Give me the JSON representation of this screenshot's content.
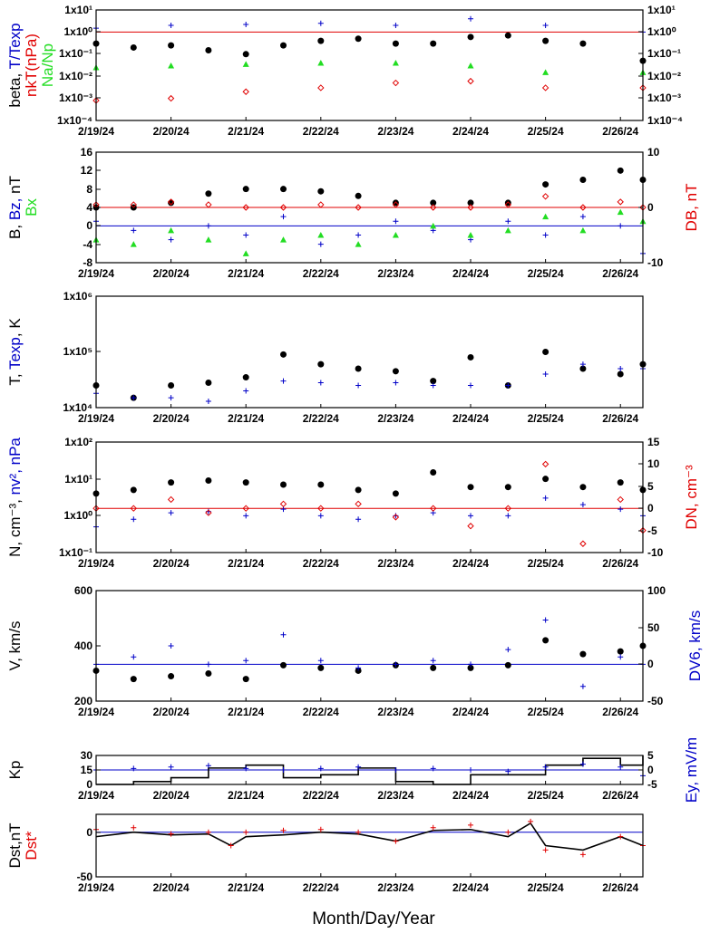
{
  "colors": {
    "black": "#000000",
    "red": "#e00000",
    "blue": "#0000c8",
    "green": "#22dd22"
  },
  "x_ticks": [
    "2/19/24",
    "2/20/24",
    "2/21/24",
    "2/22/24",
    "2/23/24",
    "2/24/24",
    "2/25/24",
    "2/26/24"
  ],
  "x_axis_title": "Month/Day/Year",
  "chart_data": [
    {
      "type": "scatter",
      "ylabel_parts": [
        {
          "text": "beta, ",
          "color": "black"
        },
        {
          "text": "T/Texp",
          "color": "blue"
        },
        {
          "text": "nkT(nPa)",
          "color": "red"
        },
        {
          "text": "Na/Np",
          "color": "green"
        }
      ],
      "y_scale": "log",
      "ylim": [
        "1x10-4",
        "1x10¹"
      ],
      "y_ticks_left": [
        "1x10¹",
        "1x10⁰",
        "1x10⁻¹",
        "1x10⁻²",
        "1x10⁻³",
        "1x10⁻⁴"
      ],
      "y_ticks_right": [
        "1x10¹",
        "1x10⁰",
        "1x10⁻¹",
        "1x10⁻²",
        "1x10⁻³",
        "1x10⁻⁴"
      ],
      "reference_lines": [
        {
          "value": "1",
          "color": "red"
        }
      ],
      "series": [
        {
          "color": "black",
          "marker": "dot",
          "x_days": [
            0,
            0.5,
            1,
            1.5,
            2,
            2.5,
            3,
            3.5,
            4,
            4.5,
            5,
            5.5,
            6,
            6.5,
            7.3
          ],
          "values": [
            0.3,
            0.2,
            0.25,
            0.15,
            0.1,
            0.25,
            0.4,
            0.5,
            0.3,
            0.3,
            0.6,
            0.7,
            0.4,
            0.3,
            0.05
          ]
        },
        {
          "color": "blue",
          "marker": "plus",
          "x_days": [
            0,
            1,
            2,
            3,
            4,
            5,
            6,
            7.3
          ],
          "values": [
            1.5,
            2,
            2.2,
            2.5,
            2,
            4,
            2,
            1
          ]
        },
        {
          "color": "green",
          "marker": "triangle",
          "x_days": [
            0,
            1,
            2,
            3,
            4,
            5,
            6,
            7.3
          ],
          "values": [
            0.025,
            0.03,
            0.035,
            0.04,
            0.04,
            0.03,
            0.015,
            0.015
          ]
        },
        {
          "color": "red",
          "marker": "diamond",
          "x_days": [
            0,
            1,
            2,
            3,
            4,
            5,
            6,
            7.3
          ],
          "values": [
            0.0008,
            0.001,
            0.002,
            0.003,
            0.005,
            0.006,
            0.003,
            0.003
          ]
        }
      ]
    },
    {
      "type": "scatter",
      "ylabel_parts": [
        {
          "text": "B, ",
          "color": "black"
        },
        {
          "text": "Bz, ",
          "color": "blue"
        },
        {
          "text": "nT",
          "color": "black"
        },
        {
          "text": "Bx",
          "color": "green"
        }
      ],
      "ylim": [
        -8,
        16
      ],
      "y_ticks_left": [
        "16",
        "12",
        "8",
        "4",
        "0",
        "-4",
        "-8"
      ],
      "right_label": "DB, nT",
      "right_ylim": [
        -10,
        10
      ],
      "y_ticks_right": [
        "10",
        "0",
        "-10"
      ],
      "reference_lines": [
        {
          "value": 0,
          "color": "blue"
        },
        {
          "value": 4,
          "color": "red"
        }
      ],
      "series": [
        {
          "color": "black",
          "marker": "dot",
          "x_days": [
            0,
            0.5,
            1,
            1.5,
            2,
            2.5,
            3,
            3.5,
            4,
            4.5,
            5,
            5.5,
            6,
            6.5,
            7,
            7.3
          ],
          "values": [
            4,
            4,
            5,
            7,
            8,
            8,
            7.5,
            6.5,
            5,
            5,
            5,
            5,
            9,
            10,
            12,
            10
          ]
        },
        {
          "color": "blue",
          "marker": "plus",
          "x_days": [
            0,
            0.5,
            1,
            1.5,
            2,
            2.5,
            3,
            3.5,
            4,
            4.5,
            5,
            5.5,
            6,
            6.5,
            7,
            7.3
          ],
          "values": [
            1,
            -1,
            -3,
            0,
            -2,
            2,
            -4,
            -2,
            1,
            -1,
            -3,
            1,
            -2,
            2,
            0,
            -6
          ]
        },
        {
          "color": "green",
          "marker": "triangle",
          "x_days": [
            0,
            0.5,
            1,
            1.5,
            2,
            2.5,
            3,
            3.5,
            4,
            4.5,
            5,
            5.5,
            6,
            6.5,
            7,
            7.3
          ],
          "values": [
            -3,
            -4,
            -1,
            -3,
            -6,
            -3,
            -2,
            -4,
            -2,
            0,
            -2,
            -1,
            2,
            -1,
            3,
            1
          ]
        },
        {
          "color": "red",
          "marker": "diamond",
          "x_days": [
            0,
            0.5,
            1,
            1.5,
            2,
            2.5,
            3,
            3.5,
            4,
            4.5,
            5,
            5.5,
            6,
            6.5,
            7,
            7.3
          ],
          "values": [
            0.5,
            0.5,
            1,
            0.5,
            0,
            0,
            0.5,
            0,
            0.5,
            0,
            0,
            0.5,
            2,
            0,
            1,
            0
          ]
        }
      ]
    },
    {
      "type": "scatter",
      "ylabel_parts": [
        {
          "text": "T, ",
          "color": "black"
        },
        {
          "text": "Texp",
          "color": "blue"
        },
        {
          "text": ", K",
          "color": "black"
        }
      ],
      "y_scale": "log",
      "y_ticks_left": [
        "1x10⁶",
        "1x10⁵",
        "1x10⁴"
      ],
      "series": [
        {
          "color": "black",
          "marker": "dot",
          "x_days": [
            0,
            0.5,
            1,
            1.5,
            2,
            2.5,
            3,
            3.5,
            4,
            4.5,
            5,
            5.5,
            6,
            6.5,
            7,
            7.3
          ],
          "values": [
            25000,
            15000,
            25000,
            28000,
            35000,
            90000,
            60000,
            50000,
            45000,
            30000,
            80000,
            25000,
            100000,
            50000,
            40000,
            60000
          ]
        },
        {
          "color": "blue",
          "marker": "plus",
          "x_days": [
            0,
            0.5,
            1,
            1.5,
            2,
            2.5,
            3,
            3.5,
            4,
            4.5,
            5,
            5.5,
            6,
            6.5,
            7,
            7.3
          ],
          "values": [
            18000,
            15000,
            15000,
            13000,
            20000,
            30000,
            28000,
            25000,
            28000,
            25000,
            25000,
            25000,
            40000,
            60000,
            50000,
            50000
          ]
        }
      ]
    },
    {
      "type": "scatter",
      "ylabel_parts": [
        {
          "text": "N, cm⁻³, ",
          "color": "black"
        },
        {
          "text": "nv², nPa",
          "color": "blue"
        }
      ],
      "y_scale": "log",
      "y_ticks_left": [
        "1x10²",
        "1x10¹",
        "1x10⁰",
        "1x10⁻¹"
      ],
      "right_label": "DN, cm⁻³",
      "right_ylim": [
        -10,
        15
      ],
      "y_ticks_right": [
        "15",
        "10",
        "5",
        "0",
        "-5",
        "-10"
      ],
      "reference_lines": [
        {
          "value": "0 (right axis)",
          "color": "red"
        }
      ],
      "series": [
        {
          "color": "black",
          "marker": "dot",
          "x_days": [
            0,
            0.5,
            1,
            1.5,
            2,
            2.5,
            3,
            3.5,
            4,
            4.5,
            5,
            5.5,
            6,
            6.5,
            7,
            7.3
          ],
          "values": [
            4,
            5,
            8,
            9,
            8,
            7,
            7,
            5,
            4,
            15,
            6,
            6,
            10,
            6,
            8,
            5
          ]
        },
        {
          "color": "blue",
          "marker": "plus",
          "x_days": [
            0,
            0.5,
            1,
            1.5,
            2,
            2.5,
            3,
            3.5,
            4,
            4.5,
            5,
            5.5,
            6,
            6.5,
            7,
            7.3
          ],
          "values": [
            0.5,
            0.8,
            1.2,
            1.3,
            1,
            1.5,
            1,
            0.8,
            1,
            1.2,
            1,
            1,
            3,
            2,
            1.5,
            1
          ]
        },
        {
          "color": "red",
          "marker": "diamond",
          "x_days": [
            0,
            0.5,
            1,
            1.5,
            2,
            2.5,
            3,
            3.5,
            4,
            4.5,
            5,
            5.5,
            6,
            6.5,
            7,
            7.3
          ],
          "values": [
            0,
            0,
            2,
            -1,
            0,
            1,
            0,
            1,
            -2,
            0,
            -4,
            0,
            10,
            -8,
            2,
            -5
          ]
        }
      ]
    },
    {
      "type": "scatter",
      "ylabel_parts": [
        {
          "text": "V, km/s",
          "color": "black"
        }
      ],
      "ylim": [
        200,
        600
      ],
      "y_ticks_left": [
        "600",
        "400",
        "200"
      ],
      "right_label": "DV6, km/s",
      "right_ylim": [
        -50,
        100
      ],
      "y_ticks_right": [
        "100",
        "50",
        "0",
        "-50"
      ],
      "reference_lines": [
        {
          "value": "0 (right axis)",
          "color": "blue"
        }
      ],
      "series": [
        {
          "color": "black",
          "marker": "dot",
          "x_days": [
            0,
            0.5,
            1,
            1.5,
            2,
            2.5,
            3,
            3.5,
            4,
            4.5,
            5,
            5.5,
            6,
            6.5,
            7,
            7.3
          ],
          "values": [
            310,
            280,
            290,
            300,
            280,
            330,
            320,
            310,
            330,
            320,
            320,
            330,
            420,
            370,
            380,
            400
          ]
        },
        {
          "color": "blue",
          "marker": "plus",
          "x_days": [
            0,
            0.5,
            1,
            1.5,
            2,
            2.5,
            3,
            3.5,
            4,
            4.5,
            5,
            5.5,
            6,
            6.5,
            7,
            7.3
          ],
          "values": [
            0,
            10,
            25,
            0,
            5,
            40,
            5,
            -5,
            0,
            5,
            0,
            20,
            60,
            -30,
            10,
            0
          ]
        }
      ]
    },
    {
      "type": "line",
      "ylabel_parts": [
        {
          "text": "Kp",
          "color": "black"
        }
      ],
      "ylim": [
        0,
        30
      ],
      "y_ticks_left": [
        "30",
        "15",
        "0"
      ],
      "right_label": "Ey,  mV/m",
      "right_ylim": [
        -5,
        5
      ],
      "y_ticks_right": [
        "5",
        "0",
        "-5"
      ],
      "reference_lines": [
        {
          "value": "0 (right axis)",
          "color": "blue"
        }
      ],
      "series": [
        {
          "color": "black",
          "marker": "line",
          "x_days": [
            0,
            0.5,
            1,
            1.5,
            2,
            2.5,
            3,
            3.5,
            4,
            4.5,
            5,
            5.5,
            6,
            6.5,
            7,
            7.3
          ],
          "values": [
            0,
            3,
            7,
            17,
            20,
            7,
            10,
            17,
            3,
            0,
            10,
            10,
            20,
            27,
            20,
            30
          ]
        },
        {
          "color": "blue",
          "marker": "plus",
          "x_days": [
            0,
            0.5,
            1,
            1.5,
            2,
            2.5,
            3,
            3.5,
            4,
            4.5,
            5,
            5.5,
            6,
            6.5,
            7,
            7.3
          ],
          "values": [
            0,
            0.5,
            1,
            1.5,
            0.5,
            0,
            0.5,
            1,
            0,
            0.5,
            0,
            -0.5,
            1,
            2,
            1,
            -2
          ]
        }
      ]
    },
    {
      "type": "line",
      "ylabel_parts": [
        {
          "text": "Dst,nT",
          "color": "black"
        },
        {
          "text": "Dst*",
          "color": "red"
        }
      ],
      "ylim": [
        -50,
        20
      ],
      "y_ticks_left": [
        "0",
        "-50"
      ],
      "reference_lines": [
        {
          "value": 0,
          "color": "blue"
        },
        {
          "value": -50,
          "color": "red"
        }
      ],
      "series": [
        {
          "color": "black",
          "marker": "line",
          "x_days": [
            0,
            0.5,
            1,
            1.5,
            1.8,
            2,
            2.5,
            3,
            3.5,
            4,
            4.5,
            5,
            5.5,
            5.8,
            6,
            6.5,
            7,
            7.3
          ],
          "values": [
            -5,
            0,
            -3,
            -2,
            -15,
            -5,
            -3,
            0,
            -2,
            -10,
            2,
            3,
            -5,
            10,
            -15,
            -20,
            -5,
            -15
          ]
        },
        {
          "color": "red",
          "marker": "plus",
          "x_days": [
            0,
            0.5,
            1,
            1.5,
            1.8,
            2,
            2.5,
            3,
            3.5,
            4,
            4.5,
            5,
            5.5,
            5.8,
            6,
            6.5,
            7,
            7.3
          ],
          "values": [
            3,
            5,
            -2,
            0,
            -15,
            0,
            2,
            3,
            0,
            -10,
            5,
            8,
            0,
            12,
            -20,
            -25,
            -5,
            -15
          ]
        }
      ]
    }
  ]
}
